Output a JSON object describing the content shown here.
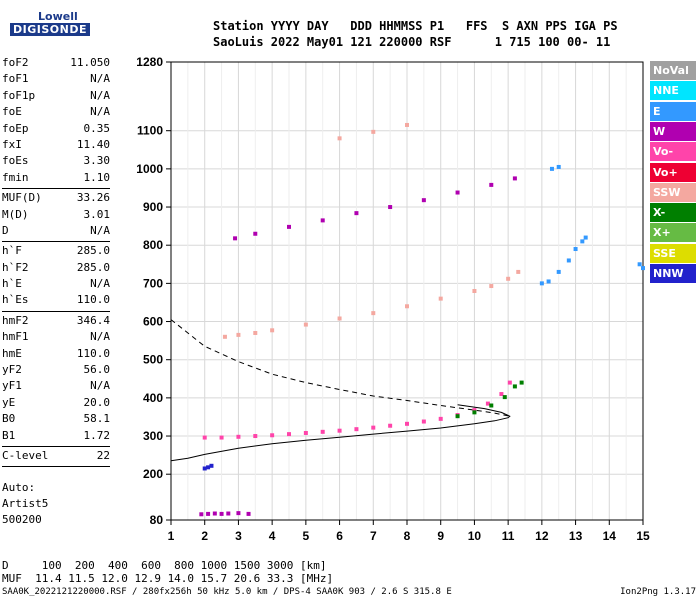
{
  "logo": {
    "brand_top": "Lowell",
    "brand_main": "DIGISONDE"
  },
  "header": {
    "line1": "Station YYYY DAY   DDD HHMMSS P1   FFS  S AXN PPS IGA PS",
    "line2": "SaoLuis 2022 May01 121 220000 RSF      1 715 100 00- 11"
  },
  "params": {
    "group1": [
      {
        "k": "foF2",
        "v": "11.050"
      },
      {
        "k": "foF1",
        "v": "N/A"
      },
      {
        "k": "foF1p",
        "v": "N/A"
      },
      {
        "k": "foE",
        "v": "N/A"
      },
      {
        "k": "foEp",
        "v": "0.35"
      },
      {
        "k": "fxI",
        "v": "11.40"
      },
      {
        "k": "foEs",
        "v": "3.30"
      },
      {
        "k": "fmin",
        "v": "1.10"
      }
    ],
    "group2": [
      {
        "k": "MUF(D)",
        "v": "33.26"
      },
      {
        "k": "M(D)",
        "v": "3.01"
      },
      {
        "k": "D",
        "v": "N/A"
      }
    ],
    "group3": [
      {
        "k": "h`F",
        "v": "285.0"
      },
      {
        "k": "h`F2",
        "v": "285.0"
      },
      {
        "k": "h`E",
        "v": "N/A"
      },
      {
        "k": "h`Es",
        "v": "110.0"
      }
    ],
    "group4": [
      {
        "k": "hmF2",
        "v": "346.4"
      },
      {
        "k": "hmF1",
        "v": "N/A"
      },
      {
        "k": "hmE",
        "v": "110.0"
      },
      {
        "k": "yF2",
        "v": "56.0"
      },
      {
        "k": "yF1",
        "v": "N/A"
      },
      {
        "k": "yE",
        "v": "20.0"
      },
      {
        "k": "B0",
        "v": "58.1"
      },
      {
        "k": "B1",
        "v": "1.72"
      }
    ],
    "group5": [
      {
        "k": "C-level",
        "v": "22"
      }
    ]
  },
  "auto": {
    "line1": "Auto:",
    "line2": "Artist5",
    "line3": "500200"
  },
  "footer": {
    "d_row": "D     100  200  400  600  800 1000 1500 3000 [km]",
    "muf_row": "MUF  11.4 11.5 12.0 12.9 14.0 15.7 20.6 33.3 [MHz]",
    "file_info": "SAA0K_2022121220000.RSF / 280fx256h 50 kHz 5.0 km / DPS-4 SAA0K 903 / 2.6 S 315.8 E",
    "version": "Ion2Png 1.3.17"
  },
  "legend": [
    {
      "label": "NoVal",
      "color": "#a0a0a0"
    },
    {
      "label": "NNE",
      "color": "#00e5ff"
    },
    {
      "label": "E",
      "color": "#3399ff"
    },
    {
      "label": "W",
      "color": "#b000b0"
    },
    {
      "label": "Vo-",
      "color": "#ff44aa"
    },
    {
      "label": "Vo+",
      "color": "#ee0033"
    },
    {
      "label": "SSW",
      "color": "#f4a8a0"
    },
    {
      "label": "X-",
      "color": "#007f00"
    },
    {
      "label": "X+",
      "color": "#66bb44"
    },
    {
      "label": "SSE",
      "color": "#dddd00"
    },
    {
      "label": "NNW",
      "color": "#2222cc"
    }
  ],
  "chart_data": {
    "type": "scatter",
    "xlabel": "",
    "ylabel": "",
    "xlim": [
      1,
      15
    ],
    "ylim": [
      80,
      1280
    ],
    "x_ticks": [
      1,
      2,
      3,
      4,
      5,
      6,
      7,
      8,
      9,
      10,
      11,
      12,
      13,
      14,
      15
    ],
    "y_ticks": [
      80,
      200,
      300,
      400,
      500,
      600,
      700,
      800,
      900,
      1000,
      1100,
      1280
    ],
    "traces": [
      {
        "name": "F2 O-trace",
        "color": "#ff44aa",
        "points": [
          [
            2.0,
            296
          ],
          [
            2.5,
            296
          ],
          [
            3.0,
            298
          ],
          [
            3.5,
            300
          ],
          [
            4.0,
            302
          ],
          [
            4.5,
            305
          ],
          [
            5.0,
            308
          ],
          [
            5.5,
            311
          ],
          [
            6.0,
            314
          ],
          [
            6.5,
            318
          ],
          [
            7.0,
            322
          ],
          [
            7.5,
            327
          ],
          [
            8.0,
            332
          ],
          [
            8.5,
            338
          ],
          [
            9.0,
            345
          ],
          [
            9.5,
            355
          ],
          [
            10.0,
            368
          ],
          [
            10.4,
            385
          ],
          [
            10.8,
            410
          ],
          [
            11.05,
            440
          ]
        ]
      },
      {
        "name": "F2 X-trace",
        "color": "#007f00",
        "points": [
          [
            9.5,
            352
          ],
          [
            10.0,
            362
          ],
          [
            10.5,
            380
          ],
          [
            10.9,
            402
          ],
          [
            11.2,
            430
          ],
          [
            11.4,
            440
          ]
        ]
      },
      {
        "name": "2F2 echo",
        "color": "#f4a8a0",
        "points": [
          [
            2.6,
            560
          ],
          [
            3.0,
            565
          ],
          [
            3.5,
            570
          ],
          [
            4.0,
            577
          ],
          [
            5.0,
            592
          ],
          [
            6.0,
            608
          ],
          [
            7.0,
            622
          ],
          [
            8.0,
            640
          ],
          [
            9.0,
            660
          ],
          [
            10.0,
            680
          ],
          [
            10.5,
            693
          ],
          [
            11.0,
            712
          ],
          [
            11.3,
            730
          ]
        ]
      },
      {
        "name": "3F2 echo",
        "color": "#b000b0",
        "points": [
          [
            2.9,
            818
          ],
          [
            3.5,
            830
          ],
          [
            4.5,
            848
          ],
          [
            5.5,
            865
          ],
          [
            6.5,
            884
          ],
          [
            7.5,
            900
          ],
          [
            8.5,
            918
          ],
          [
            9.5,
            938
          ],
          [
            10.5,
            958
          ],
          [
            11.2,
            975
          ]
        ]
      },
      {
        "name": "4F2 echo",
        "color": "#f4a8a0",
        "points": [
          [
            6.0,
            1080
          ],
          [
            7.0,
            1097
          ],
          [
            8.0,
            1115
          ]
        ]
      },
      {
        "name": "Es low",
        "color": "#b000b0",
        "points": [
          [
            1.9,
            95
          ],
          [
            2.1,
            96
          ],
          [
            2.3,
            97
          ],
          [
            2.5,
            96
          ],
          [
            2.7,
            97
          ],
          [
            3.0,
            98
          ],
          [
            3.3,
            96
          ]
        ]
      },
      {
        "name": "E scatter",
        "color": "#2222cc",
        "points": [
          [
            2.0,
            215
          ],
          [
            2.1,
            218
          ],
          [
            2.2,
            222
          ]
        ]
      },
      {
        "name": "High-frequency right",
        "color": "#3399ff",
        "points": [
          [
            12.0,
            700
          ],
          [
            12.2,
            705
          ],
          [
            12.5,
            730
          ],
          [
            12.8,
            760
          ],
          [
            13.0,
            790
          ],
          [
            13.2,
            810
          ],
          [
            13.3,
            820
          ],
          [
            12.3,
            1000
          ],
          [
            12.5,
            1005
          ],
          [
            14.9,
            750
          ],
          [
            15.0,
            740
          ]
        ]
      }
    ],
    "profile_solid": [
      [
        1.0,
        235
      ],
      [
        1.5,
        242
      ],
      [
        2.0,
        252
      ],
      [
        3.0,
        268
      ],
      [
        4.0,
        280
      ],
      [
        5.0,
        289
      ],
      [
        6.0,
        297
      ],
      [
        7.0,
        305
      ],
      [
        8.0,
        313
      ],
      [
        9.0,
        321
      ],
      [
        10.0,
        332
      ],
      [
        10.6,
        340
      ],
      [
        11.0,
        348
      ],
      [
        11.05,
        352
      ],
      [
        10.8,
        362
      ],
      [
        10.3,
        372
      ],
      [
        9.5,
        382
      ]
    ],
    "profile_dashed": [
      [
        1.0,
        605
      ],
      [
        1.5,
        570
      ],
      [
        2.0,
        535
      ],
      [
        3.0,
        495
      ],
      [
        4.0,
        462
      ],
      [
        5.0,
        440
      ],
      [
        6.0,
        422
      ],
      [
        7.0,
        405
      ],
      [
        8.0,
        393
      ],
      [
        9.0,
        380
      ],
      [
        10.0,
        368
      ],
      [
        10.6,
        360
      ],
      [
        11.05,
        352
      ]
    ]
  }
}
